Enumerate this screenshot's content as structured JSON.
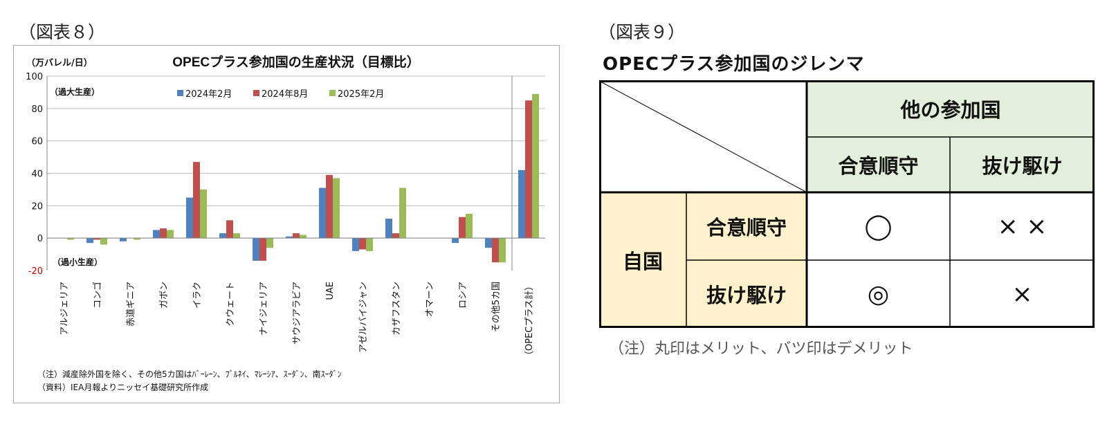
{
  "left_figure": {
    "label": "（図表８）",
    "note": "（注）減産除外国を除く、その他5カ国はﾊﾞｰﾚｰﾝ、ﾌﾞﾙﾈｲ、ﾏﾚｰｼｱ、ｽｰﾀﾞﾝ、南ｽｰﾀﾞﾝ",
    "source": "（資料）IEA月報よりニッセイ基礎研究所作成"
  },
  "chart_data": {
    "type": "bar",
    "title": "OPECプラス参加国の生産状況（目標比）",
    "unit_label": "（万バレル/日）",
    "annotations": {
      "over": "（過大生産）",
      "under": "（過小生産）"
    },
    "ylim": [
      -20,
      100
    ],
    "yticks": [
      "100",
      "80",
      "60",
      "40",
      "20",
      "0",
      "-20"
    ],
    "ytick_values": [
      100,
      80,
      60,
      40,
      20,
      0,
      -20
    ],
    "categories": [
      "アルジェリア",
      "コンゴ",
      "赤道ギニア",
      "ガボン",
      "イラク",
      "クウェート",
      "ナイジェリア",
      "サウジアラビア",
      "UAE",
      "アゼルバイジャン",
      "カザフスタン",
      "オマーン",
      "ロシア",
      "その他5カ国",
      "（OPECプラス計）"
    ],
    "series": [
      {
        "name": "2024年2月",
        "color": "#4f81bd",
        "values": [
          0,
          -3,
          -2,
          5,
          25,
          3,
          -14,
          1,
          31,
          -8,
          12,
          0,
          -3,
          -6,
          42
        ]
      },
      {
        "name": "2024年8月",
        "color": "#c0504d",
        "values": [
          0,
          -1,
          0,
          6,
          47,
          11,
          -14,
          3,
          39,
          -7,
          3,
          0,
          13,
          -15,
          85
        ]
      },
      {
        "name": "2025年2月",
        "color": "#9bbb59",
        "values": [
          -1,
          -4,
          -1,
          5,
          30,
          3,
          -6,
          2,
          37,
          -8,
          31,
          0,
          15,
          -15,
          89
        ]
      }
    ],
    "grid": true,
    "legend_position": "top"
  },
  "right_figure": {
    "label": "（図表９）",
    "title": "OPECプラス参加国のジレンマ",
    "col_group_header": "他の参加国",
    "col_headers": [
      "合意順守",
      "抜け駆け"
    ],
    "row_group_header": "自国",
    "row_headers": [
      "合意順守",
      "抜け駆け"
    ],
    "cells": [
      [
        "◯",
        "× ×"
      ],
      [
        "◎",
        "×"
      ]
    ],
    "footnote": "（注）丸印はメリット、バツ印はデメリット",
    "colors": {
      "header_green": "#e2efda",
      "header_yellow": "#fff2cc"
    }
  }
}
